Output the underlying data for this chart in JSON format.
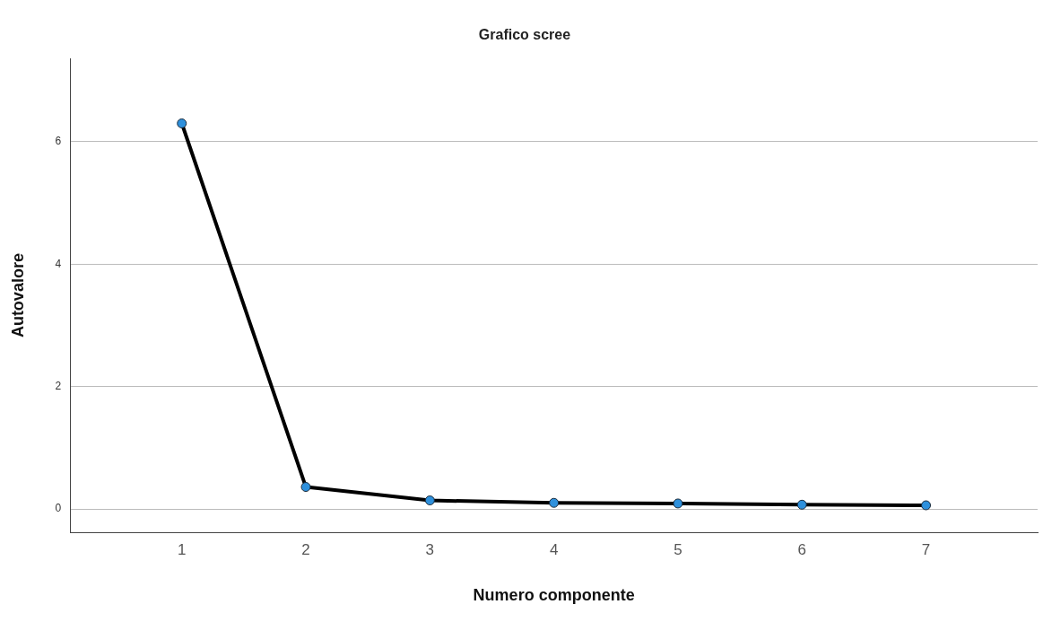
{
  "chart_data": {
    "type": "line",
    "title": "Grafico scree",
    "xlabel": "Numero componente",
    "ylabel": "Autovalore",
    "x": [
      1,
      2,
      3,
      4,
      5,
      6,
      7
    ],
    "series": [
      {
        "color": "#000000",
        "values": [
          6.3,
          0.36,
          0.14,
          0.1,
          0.09,
          0.07,
          0.06
        ]
      }
    ],
    "xlim": [
      0.1,
      7.9
    ],
    "xticks": [
      1,
      2,
      3,
      4,
      5,
      6,
      7
    ],
    "ylim": [
      -0.38,
      7.36
    ],
    "yticks": [
      0,
      2,
      4,
      6
    ],
    "grid": "y",
    "legend": false,
    "marker": "circle",
    "line_style": "solid"
  }
}
